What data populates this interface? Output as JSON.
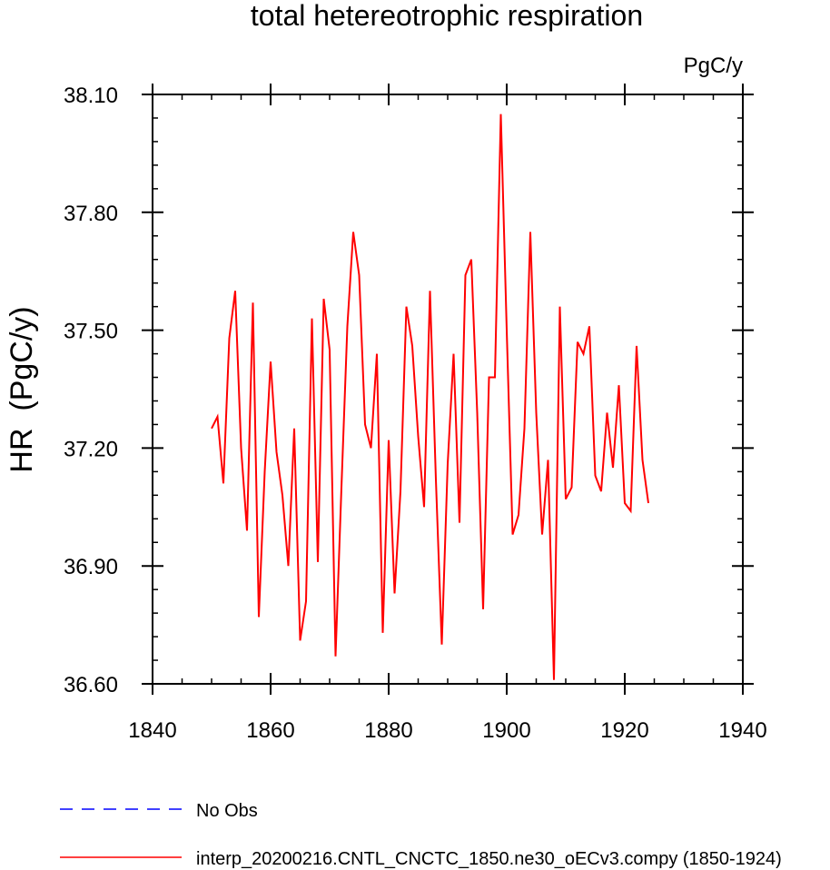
{
  "chart_data": {
    "type": "line",
    "title": "total hetereotrophic respiration",
    "units_label": "PgC/y",
    "ylabel": "HR  (PgC/y)",
    "xlabel": "",
    "xlim": [
      1840,
      1940
    ],
    "ylim": [
      36.6,
      38.1
    ],
    "x_ticks": [
      1840,
      1860,
      1880,
      1900,
      1920,
      1940
    ],
    "y_ticks": [
      36.6,
      36.9,
      37.2,
      37.5,
      37.8,
      38.1
    ],
    "x_tick_labels": [
      "1840",
      "1860",
      "1880",
      "1900",
      "1920",
      "1940"
    ],
    "y_tick_labels": [
      "36.60",
      "36.90",
      "37.20",
      "37.50",
      "37.80",
      "38.10"
    ],
    "grid": false,
    "legend_position": "bottom",
    "legend": [
      {
        "label": "No Obs",
        "color": "#0000ff",
        "style": "dashed"
      },
      {
        "label": "interp_20200216.CNTL_CNCTC_1850.ne30_oECv3.compy (1850-1924)",
        "color": "#ff0000",
        "style": "solid"
      }
    ],
    "series": [
      {
        "name": "interp_20200216.CNTL_CNCTC_1850.ne30_oECv3.compy (1850-1924)",
        "color": "#ff0000",
        "x": [
          1850,
          1851,
          1852,
          1853,
          1854,
          1855,
          1856,
          1857,
          1858,
          1859,
          1860,
          1861,
          1862,
          1863,
          1864,
          1865,
          1866,
          1867,
          1868,
          1869,
          1870,
          1871,
          1872,
          1873,
          1874,
          1875,
          1876,
          1877,
          1878,
          1879,
          1880,
          1881,
          1882,
          1883,
          1884,
          1885,
          1886,
          1887,
          1888,
          1889,
          1890,
          1891,
          1892,
          1893,
          1894,
          1895,
          1896,
          1897,
          1898,
          1899,
          1900,
          1901,
          1902,
          1903,
          1904,
          1905,
          1906,
          1907,
          1908,
          1909,
          1910,
          1911,
          1912,
          1913,
          1914,
          1915,
          1916,
          1917,
          1918,
          1919,
          1920,
          1921,
          1922,
          1923,
          1924
        ],
        "y": [
          37.25,
          37.28,
          37.11,
          37.48,
          37.6,
          37.2,
          36.99,
          37.57,
          36.77,
          37.14,
          37.42,
          37.19,
          37.08,
          36.9,
          37.25,
          36.71,
          36.81,
          37.53,
          36.91,
          37.58,
          37.45,
          36.67,
          37.1,
          37.51,
          37.75,
          37.64,
          37.26,
          37.2,
          37.44,
          36.73,
          37.22,
          36.83,
          37.09,
          37.56,
          37.46,
          37.23,
          37.05,
          37.6,
          37.12,
          36.7,
          37.16,
          37.44,
          37.01,
          37.64,
          37.68,
          37.29,
          36.79,
          37.38,
          37.38,
          38.05,
          37.5,
          36.98,
          37.03,
          37.25,
          37.75,
          37.29,
          36.98,
          37.17,
          36.61,
          37.56,
          37.07,
          37.1,
          37.47,
          37.44,
          37.51,
          37.13,
          37.09,
          37.29,
          37.15,
          37.36,
          37.06,
          37.04,
          37.46,
          37.17,
          37.06
        ]
      }
    ]
  }
}
